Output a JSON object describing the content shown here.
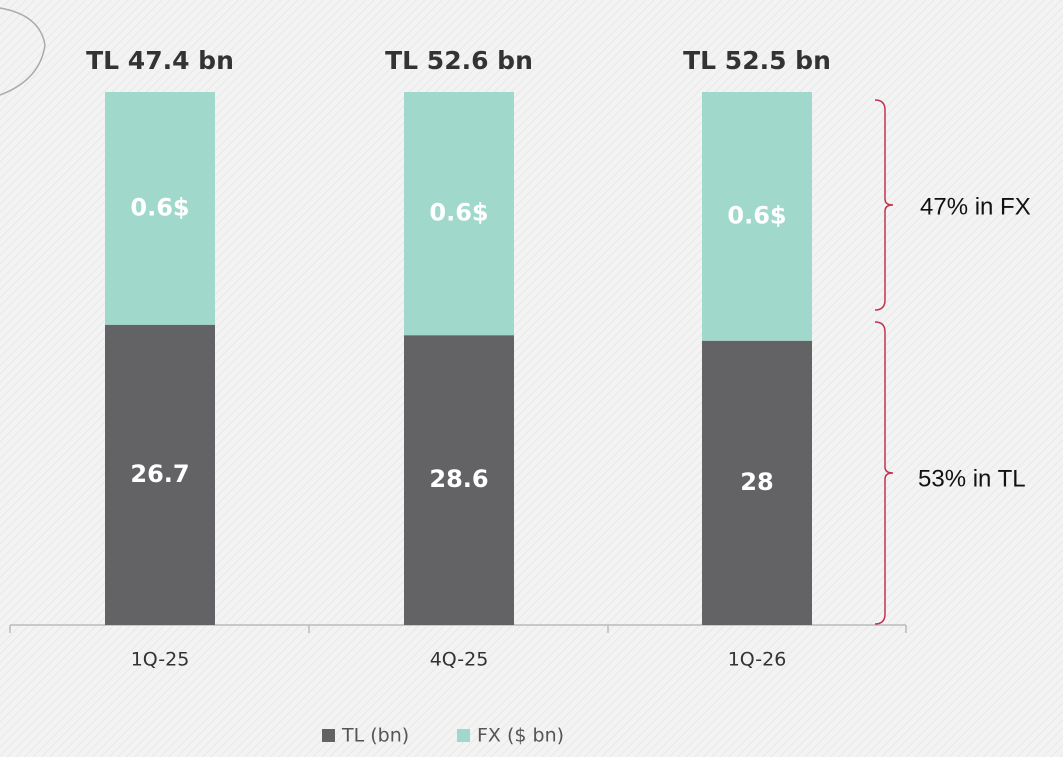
{
  "chart_data": {
    "type": "stacked_bar_100",
    "categories": [
      "1Q-25",
      "4Q-25",
      "1Q-26"
    ],
    "series": [
      {
        "name": "TL (bn)",
        "color": "#636366",
        "values": [
          26.7,
          28.6,
          28.0
        ]
      },
      {
        "name": "FX ($ bn)",
        "color": "#a0d8cb",
        "values": [
          0.6,
          0.6,
          0.6
        ],
        "value_labels": [
          "0.6$",
          "0.6$",
          "0.6$"
        ]
      }
    ],
    "totals": {
      "values": [
        47.4,
        52.6,
        52.5
      ],
      "value_labels": [
        "TL 47.4 bn",
        "TL 52.6 bn",
        "TL 52.5 bn"
      ]
    },
    "annotations": [
      "47% in FX",
      "53% in TL"
    ],
    "brace_color": "#c0344f"
  }
}
